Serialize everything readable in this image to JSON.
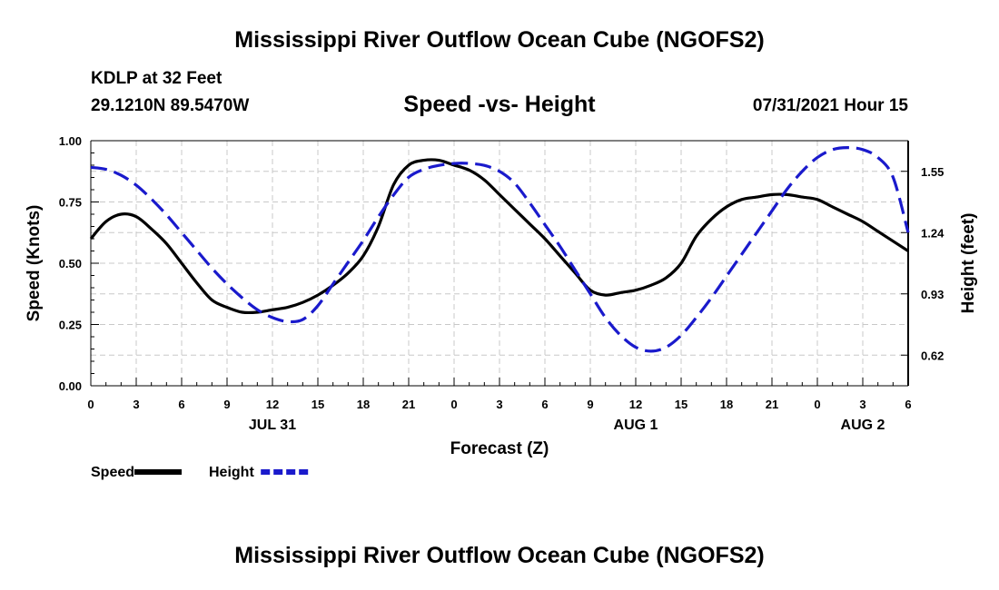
{
  "header": {
    "title": "Mississippi River Outflow Ocean Cube (NGOFS2)",
    "station": "KDLP at 32 Feet",
    "coords": "29.1210N  89.5470W",
    "chart_title": "Speed -vs- Height",
    "datetime": "07/31/2021 Hour 15"
  },
  "footer": {
    "title": "Mississippi River Outflow Ocean Cube (NGOFS2)"
  },
  "chart_data": {
    "type": "line",
    "title": "Speed -vs- Height",
    "xlabel": "Forecast (Z)",
    "ylabel": "Speed (Knots)",
    "y2label": "Height (feet)",
    "xlim": [
      0,
      54
    ],
    "ylim": [
      0,
      1.0
    ],
    "y2lim": [
      0.465,
      1.705
    ],
    "x_ticks": [
      0,
      3,
      6,
      9,
      12,
      15,
      18,
      21,
      24,
      27,
      30,
      33,
      36,
      39,
      42,
      45,
      48,
      51,
      54
    ],
    "x_tick_labels": [
      "0",
      "3",
      "6",
      "9",
      "12",
      "15",
      "18",
      "21",
      "0",
      "3",
      "6",
      "9",
      "12",
      "15",
      "18",
      "21",
      "0",
      "3",
      "6"
    ],
    "date_labels": [
      {
        "x": 12,
        "label": "JUL 31"
      },
      {
        "x": 36,
        "label": "AUG 1"
      },
      {
        "x": 51,
        "label": "AUG 2"
      }
    ],
    "y_ticks": [
      0,
      0.25,
      0.5,
      0.75,
      1.0
    ],
    "y_tick_labels": [
      "0.00",
      "0.25",
      "0.50",
      "0.75",
      "1.00"
    ],
    "y2_ticks": [
      0.62,
      0.93,
      1.24,
      1.55
    ],
    "y2_tick_labels": [
      "0.62",
      "0.93",
      "1.24",
      "1.55"
    ],
    "grid": true,
    "legend": "bottom-left",
    "series": [
      {
        "name": "Speed",
        "axis": "left",
        "style": "solid",
        "color": "#000000",
        "x": [
          0,
          1,
          2,
          3,
          4,
          5,
          6,
          7,
          8,
          9,
          10,
          11,
          12,
          13,
          14,
          15,
          16,
          17,
          18,
          19,
          20,
          21,
          22,
          23,
          24,
          25,
          26,
          27,
          28,
          29,
          30,
          31,
          32,
          33,
          34,
          35,
          36,
          37,
          38,
          39,
          40,
          41,
          42,
          43,
          44,
          45,
          46,
          47,
          48,
          49,
          50,
          51,
          52,
          53,
          54
        ],
        "values": [
          0.6,
          0.67,
          0.7,
          0.69,
          0.64,
          0.58,
          0.5,
          0.42,
          0.35,
          0.32,
          0.3,
          0.3,
          0.31,
          0.32,
          0.34,
          0.37,
          0.41,
          0.46,
          0.53,
          0.65,
          0.82,
          0.9,
          0.92,
          0.92,
          0.9,
          0.88,
          0.84,
          0.78,
          0.72,
          0.66,
          0.6,
          0.53,
          0.46,
          0.39,
          0.37,
          0.38,
          0.39,
          0.41,
          0.44,
          0.5,
          0.61,
          0.68,
          0.73,
          0.76,
          0.77,
          0.78,
          0.78,
          0.77,
          0.76,
          0.73,
          0.7,
          0.67,
          0.63,
          0.59,
          0.55
        ]
      },
      {
        "name": "Height",
        "axis": "right",
        "style": "dashed",
        "color": "#1a1acc",
        "x": [
          0,
          1,
          2,
          3,
          4,
          5,
          6,
          7,
          8,
          9,
          10,
          11,
          12,
          13,
          14,
          15,
          16,
          17,
          18,
          19,
          20,
          21,
          22,
          23,
          24,
          25,
          26,
          27,
          28,
          29,
          30,
          31,
          32,
          33,
          34,
          35,
          36,
          37,
          38,
          39,
          40,
          41,
          42,
          43,
          44,
          45,
          46,
          47,
          48,
          49,
          50,
          51,
          52,
          53,
          54
        ],
        "values": [
          1.57,
          1.56,
          1.53,
          1.48,
          1.41,
          1.33,
          1.24,
          1.15,
          1.06,
          0.98,
          0.91,
          0.85,
          0.81,
          0.79,
          0.8,
          0.87,
          0.98,
          1.09,
          1.2,
          1.32,
          1.43,
          1.52,
          1.56,
          1.58,
          1.59,
          1.59,
          1.58,
          1.55,
          1.49,
          1.39,
          1.28,
          1.17,
          1.05,
          0.93,
          0.81,
          0.72,
          0.66,
          0.64,
          0.66,
          0.72,
          0.81,
          0.91,
          1.02,
          1.13,
          1.24,
          1.35,
          1.46,
          1.55,
          1.62,
          1.66,
          1.67,
          1.66,
          1.62,
          1.52,
          1.24
        ]
      }
    ]
  }
}
